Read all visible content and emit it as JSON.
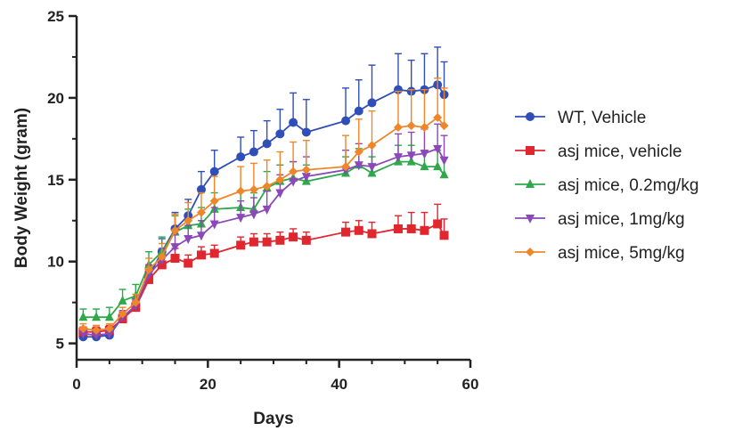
{
  "chart_data": {
    "type": "line",
    "title": "",
    "xlabel": "Days",
    "ylabel": "Body Weight (gram)",
    "xlim": [
      0,
      60
    ],
    "ylim": [
      4,
      25
    ],
    "xticks": [
      0,
      20,
      40,
      60
    ],
    "yticks": [
      5,
      10,
      15,
      20,
      25
    ],
    "grid": false,
    "legend_position": "right",
    "x": [
      1,
      3,
      5,
      7,
      9,
      11,
      13,
      15,
      17,
      19,
      21,
      25,
      27,
      29,
      31,
      33,
      35,
      41,
      43,
      45,
      49,
      51,
      53,
      55,
      56
    ],
    "series": [
      {
        "name": "WT, Vehicle",
        "color": "#2f4eb8",
        "marker": "circle",
        "values": [
          5.4,
          5.4,
          5.5,
          6.6,
          7.3,
          9.1,
          10.6,
          12.0,
          12.8,
          14.4,
          15.5,
          16.4,
          16.7,
          17.2,
          17.8,
          18.5,
          17.9,
          18.6,
          19.2,
          19.7,
          20.5,
          20.4,
          20.5,
          20.8,
          20.2
        ],
        "errors": [
          0.3,
          0.3,
          0.3,
          0.4,
          0.4,
          0.6,
          0.8,
          1.0,
          1.0,
          1.1,
          1.3,
          1.2,
          1.3,
          1.4,
          1.5,
          1.8,
          2.0,
          2.0,
          1.9,
          2.3,
          2.2,
          1.9,
          2.2,
          2.3,
          2.0
        ]
      },
      {
        "name": "asj mice, vehicle",
        "color": "#e0262f",
        "marker": "square",
        "values": [
          5.7,
          5.7,
          5.8,
          6.5,
          7.2,
          8.9,
          9.8,
          10.2,
          9.9,
          10.4,
          10.5,
          11.0,
          11.2,
          11.2,
          11.3,
          11.5,
          11.3,
          11.8,
          11.9,
          11.7,
          12.0,
          12.0,
          11.9,
          12.3,
          11.6
        ],
        "errors": [
          0.3,
          0.3,
          0.3,
          0.4,
          0.4,
          0.5,
          0.5,
          0.6,
          0.5,
          0.5,
          0.5,
          0.5,
          0.5,
          0.5,
          0.5,
          0.5,
          0.5,
          0.6,
          0.6,
          0.7,
          0.8,
          1.0,
          1.1,
          1.2,
          1.0
        ]
      },
      {
        "name": "asj mice, 0.2mg/kg",
        "color": "#2ea84a",
        "marker": "triangle-up",
        "values": [
          6.6,
          6.6,
          6.6,
          7.6,
          7.9,
          9.8,
          10.6,
          11.8,
          12.2,
          12.3,
          13.2,
          13.3,
          13.2,
          14.5,
          14.9,
          15.1,
          14.9,
          15.4,
          15.9,
          15.4,
          16.1,
          16.1,
          15.8,
          15.8,
          15.3
        ],
        "errors": [
          0.5,
          0.5,
          0.6,
          0.7,
          0.7,
          0.8,
          0.9,
          1.0,
          1.0,
          1.0,
          1.0,
          1.0,
          1.0,
          1.0,
          1.0,
          1.0,
          1.0,
          1.0,
          1.0,
          1.0,
          1.0,
          1.0,
          1.0,
          1.0,
          1.0
        ]
      },
      {
        "name": "asj mice, 1mg/kg",
        "color": "#8a48b8",
        "marker": "triangle-down",
        "values": [
          5.6,
          5.5,
          5.6,
          6.6,
          7.3,
          9.2,
          10.1,
          10.9,
          11.4,
          11.6,
          12.3,
          12.7,
          12.9,
          13.2,
          14.2,
          14.9,
          15.2,
          15.6,
          15.9,
          15.8,
          16.4,
          16.5,
          16.6,
          16.9,
          16.2
        ],
        "errors": [
          0.3,
          0.3,
          0.3,
          0.4,
          0.4,
          0.6,
          0.7,
          0.8,
          0.8,
          0.9,
          1.0,
          1.0,
          1.0,
          1.1,
          1.1,
          1.2,
          1.2,
          1.2,
          1.3,
          1.3,
          1.4,
          1.4,
          1.5,
          1.5,
          1.5
        ]
      },
      {
        "name": "asj mice, 5mg/kg",
        "color": "#f0862a",
        "marker": "diamond",
        "values": [
          5.9,
          5.8,
          5.9,
          6.8,
          7.5,
          9.5,
          10.3,
          11.9,
          12.5,
          13.0,
          13.7,
          14.3,
          14.4,
          14.6,
          15.0,
          15.5,
          15.6,
          15.8,
          16.7,
          17.1,
          18.2,
          18.3,
          18.2,
          18.8,
          18.3
        ],
        "errors": [
          0.3,
          0.3,
          0.3,
          0.4,
          0.5,
          0.7,
          0.8,
          1.0,
          1.1,
          1.2,
          1.5,
          1.5,
          1.6,
          1.6,
          1.7,
          1.8,
          1.8,
          1.9,
          2.0,
          2.1,
          2.2,
          2.2,
          2.3,
          2.4,
          2.3
        ]
      }
    ]
  }
}
